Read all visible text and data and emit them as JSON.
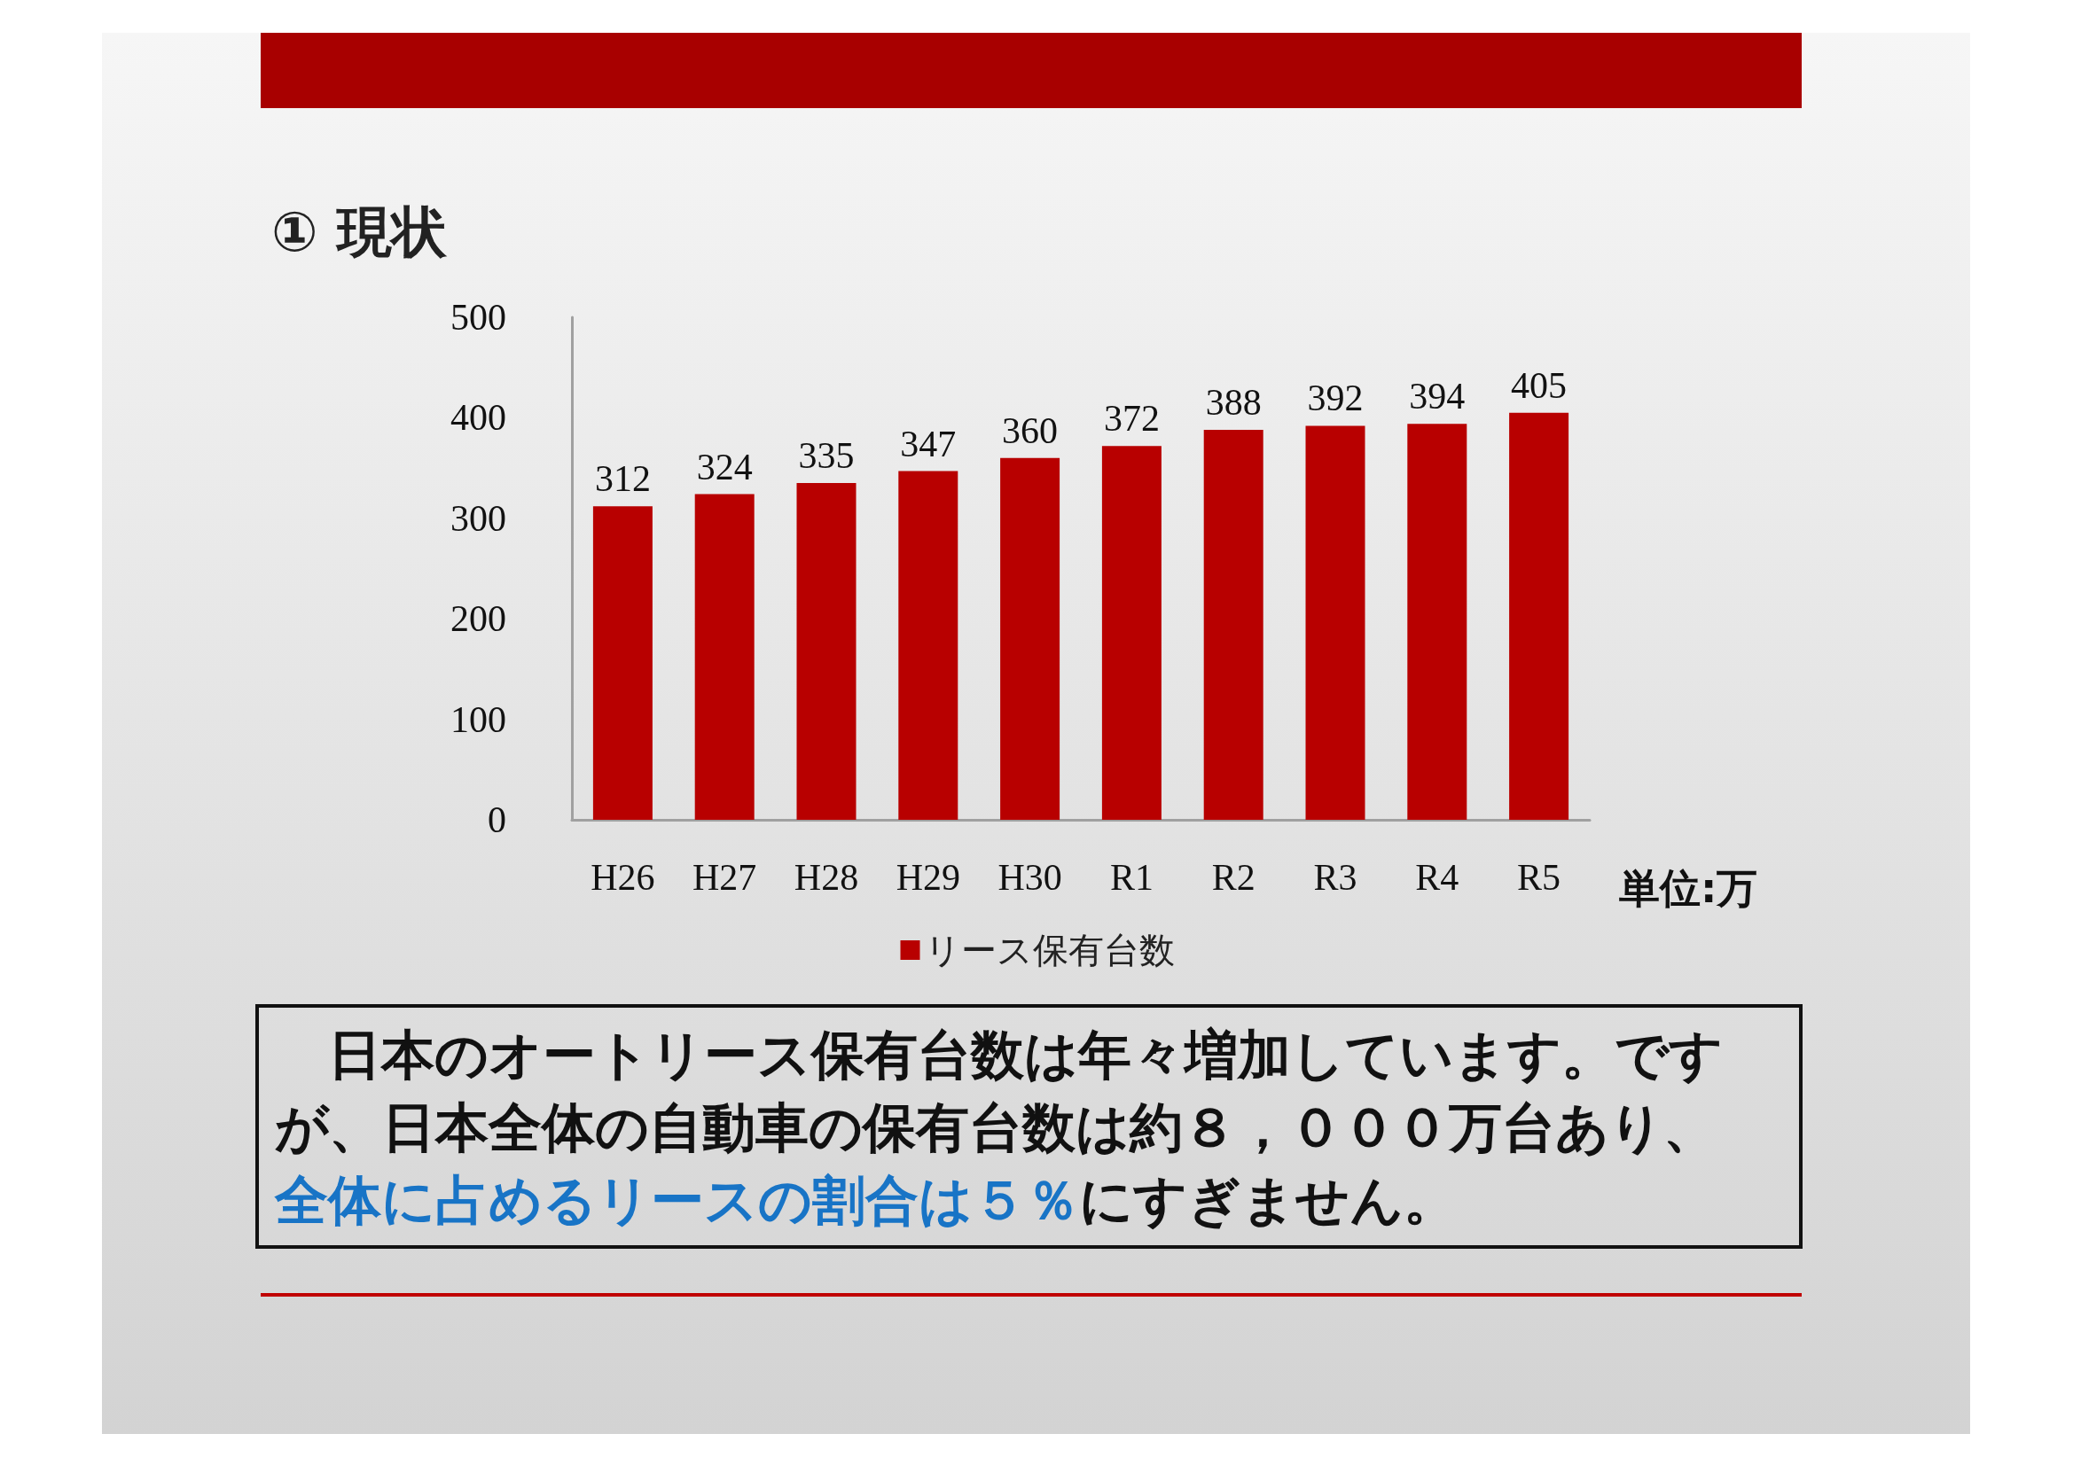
{
  "chart_data": {
    "type": "bar",
    "title": "① 現状",
    "categories": [
      "H26",
      "H27",
      "H28",
      "H29",
      "H30",
      "R1",
      "R2",
      "R3",
      "R4",
      "R5"
    ],
    "series": [
      {
        "name": "リース保有台数",
        "color": "#b80000",
        "values": [
          312,
          324,
          335,
          347,
          360,
          372,
          388,
          392,
          394,
          405
        ]
      }
    ],
    "ylim": [
      0,
      500
    ],
    "yticks": [
      0,
      100,
      200,
      300,
      400,
      500
    ],
    "data_labels": true,
    "legend": "bottom",
    "grid": false,
    "annotations": [
      "単位:万",
      "日本のオートリース保有台数は年々増加しています。ですが、日本全体の自動車の保有台数は約８，０００万台あり、",
      "全体に占めるリースの割合は５％",
      "にすぎません。"
    ]
  }
}
